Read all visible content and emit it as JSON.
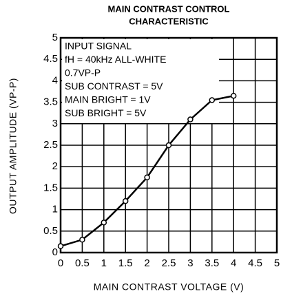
{
  "chart_data": {
    "type": "line",
    "title": [
      "MAIN CONTRAST CONTROL",
      "CHARACTERISTIC"
    ],
    "x_label": "MAIN CONTRAST VOLTAGE (V)",
    "y_label": "OUTPUT AMPLITUDE (VP-P)",
    "annotation": [
      "INPUT SIGNAL",
      "fH = 40kHz ALL-WHITE",
      "0.7VP-P",
      "SUB CONTRAST = 5V",
      "MAIN BRIGHT = 1V",
      "SUB BRIGHT = 5V"
    ],
    "x": [
      0,
      0.5,
      1,
      1.5,
      2,
      2.5,
      3,
      3.5,
      4
    ],
    "values": [
      0.15,
      0.3,
      0.7,
      1.2,
      1.75,
      2.5,
      3.1,
      3.55,
      3.65
    ],
    "color": "#000000",
    "xlim": [
      0,
      5
    ],
    "xticks": [
      0,
      0.5,
      1,
      1.5,
      2,
      2.5,
      3,
      3.5,
      4,
      4.5,
      5
    ],
    "ylim": [
      0,
      5
    ],
    "yticks": [
      0,
      0.5,
      1,
      1.5,
      2,
      2.5,
      3,
      3.5,
      4,
      4.5,
      5
    ],
    "grid": true
  }
}
